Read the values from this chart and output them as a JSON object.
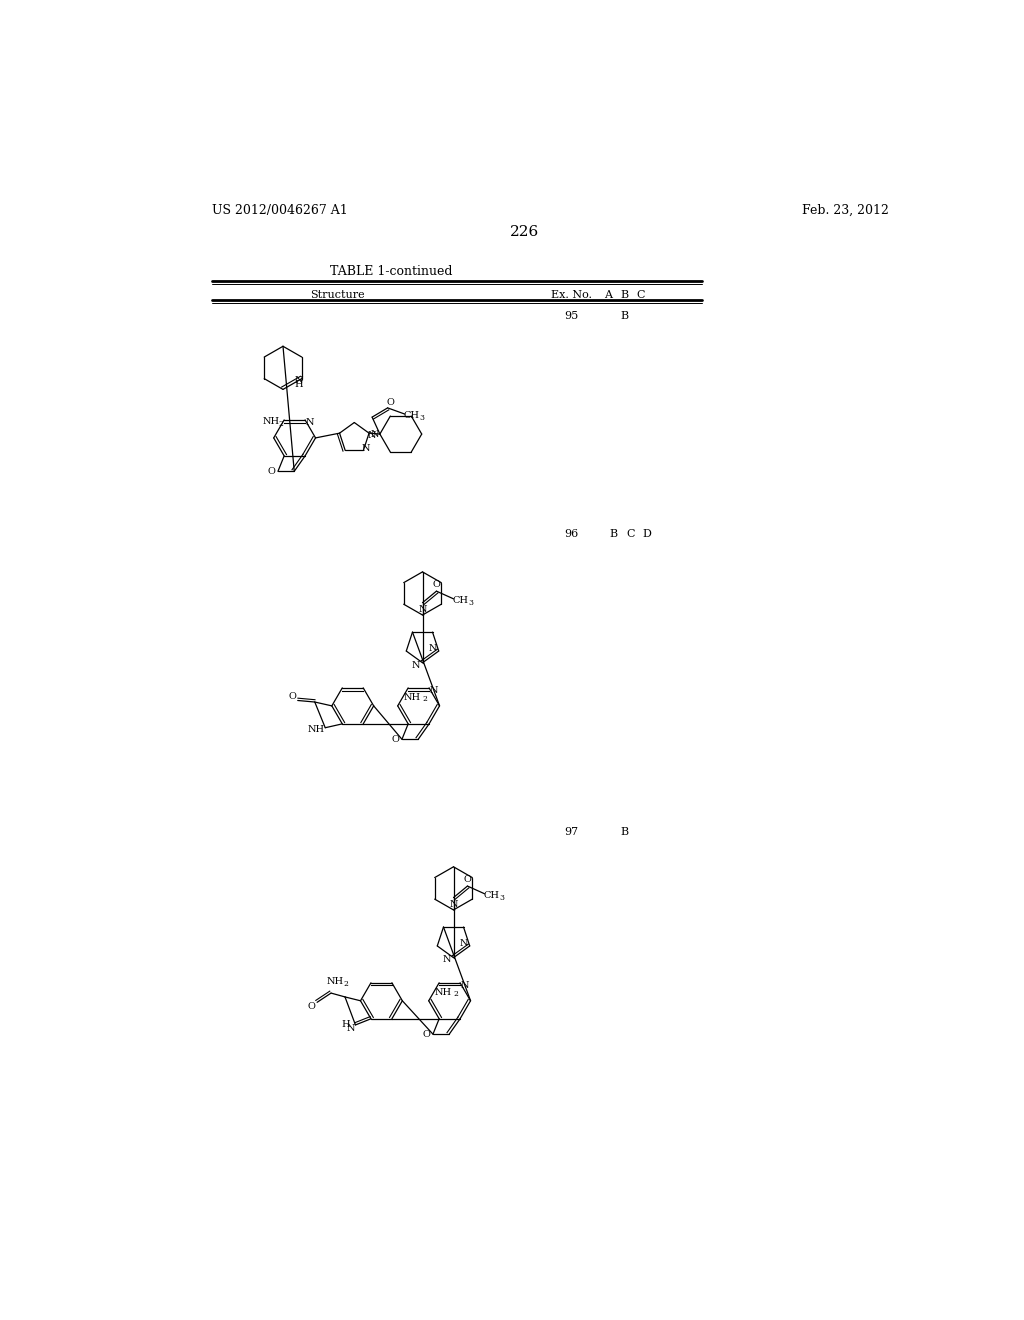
{
  "background_color": "#ffffff",
  "page_number": "226",
  "patent_number": "US 2012/0046267 A1",
  "patent_date": "Feb. 23, 2012",
  "table_title": "TABLE 1-continued",
  "ex95_no": "95",
  "ex95_col": "B",
  "ex96_no": "96",
  "ex96_cols": "B  C  D",
  "ex97_no": "97",
  "ex97_col": "B"
}
